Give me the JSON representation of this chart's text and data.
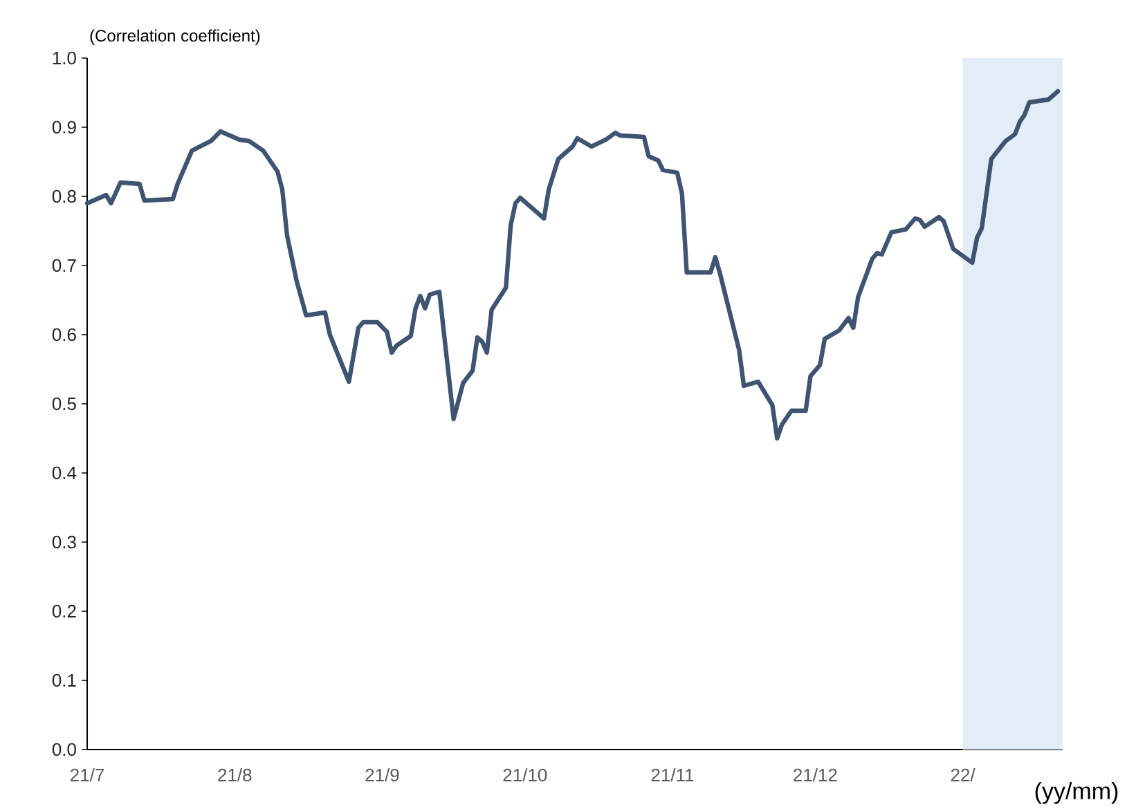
{
  "chart_data": {
    "type": "line",
    "ylabel": "(Correlation coefficient)",
    "xlabel": "(yy/mm)",
    "xlim": [
      "2021-07-01",
      "2022-01-22"
    ],
    "ylim": [
      0,
      1.0
    ],
    "xticks": [
      {
        "value": "2021-07-01",
        "label": "21/7"
      },
      {
        "value": "2021-08-01",
        "label": "21/8"
      },
      {
        "value": "2021-09-01",
        "label": "21/9"
      },
      {
        "value": "2021-10-01",
        "label": "21/10"
      },
      {
        "value": "2021-11-01",
        "label": "21/11"
      },
      {
        "value": "2021-12-01",
        "label": "21/12"
      },
      {
        "value": "2022-01-01",
        "label": "22/"
      }
    ],
    "yticks": [
      {
        "value": 0,
        "label": "0.0"
      },
      {
        "value": 0.1,
        "label": "0.1"
      },
      {
        "value": 0.2,
        "label": "0.2"
      },
      {
        "value": 0.3,
        "label": "0.3"
      },
      {
        "value": 0.4,
        "label": "0.4"
      },
      {
        "value": 0.5,
        "label": "0.5"
      },
      {
        "value": 0.6,
        "label": "0.6"
      },
      {
        "value": 0.7,
        "label": "0.7"
      },
      {
        "value": 0.8,
        "label": "0.8"
      },
      {
        "value": 0.9,
        "label": "0.9"
      },
      {
        "value": 1.0,
        "label": "1.0"
      }
    ],
    "grid": false,
    "marker": "none",
    "line_style": "solid",
    "bands": [
      {
        "axis": "x",
        "from": "2022-01-01",
        "to": "2022-01-22",
        "color": "#e3edf8"
      }
    ],
    "series": [
      {
        "color": "#3f5470",
        "x": [
          "2021-07-01",
          "2021-07-05",
          "2021-07-06",
          "2021-07-08",
          "2021-07-12",
          "2021-07-13",
          "2021-07-19",
          "2021-07-20",
          "2021-07-23",
          "2021-07-27",
          "2021-07-29",
          "2021-08-02",
          "2021-08-04",
          "2021-08-07",
          "2021-08-10",
          "2021-08-11",
          "2021-08-12",
          "2021-08-14",
          "2021-08-16",
          "2021-08-20",
          "2021-08-21",
          "2021-08-25",
          "2021-08-27",
          "2021-08-28",
          "2021-08-31",
          "2021-09-02",
          "2021-09-03",
          "2021-09-04",
          "2021-09-07",
          "2021-09-08",
          "2021-09-09",
          "2021-09-10",
          "2021-09-11",
          "2021-09-13",
          "2021-09-16",
          "2021-09-18",
          "2021-09-20",
          "2021-09-21",
          "2021-09-22",
          "2021-09-23",
          "2021-09-24",
          "2021-09-27",
          "2021-09-28",
          "2021-09-29",
          "2021-09-30",
          "2021-10-05",
          "2021-10-06",
          "2021-10-08",
          "2021-10-11",
          "2021-10-12",
          "2021-10-15",
          "2021-10-18",
          "2021-10-20",
          "2021-10-21",
          "2021-10-26",
          "2021-10-27",
          "2021-10-29",
          "2021-10-30",
          "2021-11-02",
          "2021-11-03",
          "2021-11-04",
          "2021-11-09",
          "2021-11-10",
          "2021-11-11",
          "2021-11-15",
          "2021-11-16",
          "2021-11-19",
          "2021-11-22",
          "2021-11-23",
          "2021-11-24",
          "2021-11-26",
          "2021-11-29",
          "2021-11-30",
          "2021-12-02",
          "2021-12-03",
          "2021-12-06",
          "2021-12-08",
          "2021-12-09",
          "2021-12-10",
          "2021-12-13",
          "2021-12-14",
          "2021-12-15",
          "2021-12-17",
          "2021-12-20",
          "2021-12-22",
          "2021-12-23",
          "2021-12-24",
          "2021-12-27",
          "2021-12-28",
          "2021-12-30",
          "2022-01-03",
          "2022-01-04",
          "2022-01-05",
          "2022-01-07",
          "2022-01-10",
          "2022-01-12",
          "2022-01-13",
          "2022-01-14",
          "2022-01-15",
          "2022-01-19",
          "2022-01-21"
        ],
        "values": [
          0.79,
          0.802,
          0.79,
          0.82,
          0.818,
          0.794,
          0.796,
          0.818,
          0.866,
          0.88,
          0.894,
          0.882,
          0.88,
          0.866,
          0.836,
          0.81,
          0.744,
          0.678,
          0.628,
          0.632,
          0.6,
          0.532,
          0.61,
          0.618,
          0.618,
          0.604,
          0.574,
          0.584,
          0.598,
          0.638,
          0.656,
          0.638,
          0.658,
          0.662,
          0.478,
          0.53,
          0.548,
          0.596,
          0.59,
          0.574,
          0.636,
          0.668,
          0.758,
          0.79,
          0.798,
          0.768,
          0.81,
          0.854,
          0.872,
          0.884,
          0.872,
          0.882,
          0.892,
          0.888,
          0.886,
          0.858,
          0.852,
          0.838,
          0.834,
          0.804,
          0.69,
          0.69,
          0.712,
          0.688,
          0.578,
          0.526,
          0.532,
          0.498,
          0.45,
          0.47,
          0.49,
          0.49,
          0.54,
          0.556,
          0.594,
          0.606,
          0.624,
          0.61,
          0.654,
          0.71,
          0.718,
          0.716,
          0.748,
          0.752,
          0.768,
          0.766,
          0.756,
          0.77,
          0.764,
          0.724,
          0.704,
          0.74,
          0.754,
          0.854,
          0.88,
          0.89,
          0.908,
          0.918,
          0.936,
          0.94,
          0.952
        ]
      }
    ]
  }
}
